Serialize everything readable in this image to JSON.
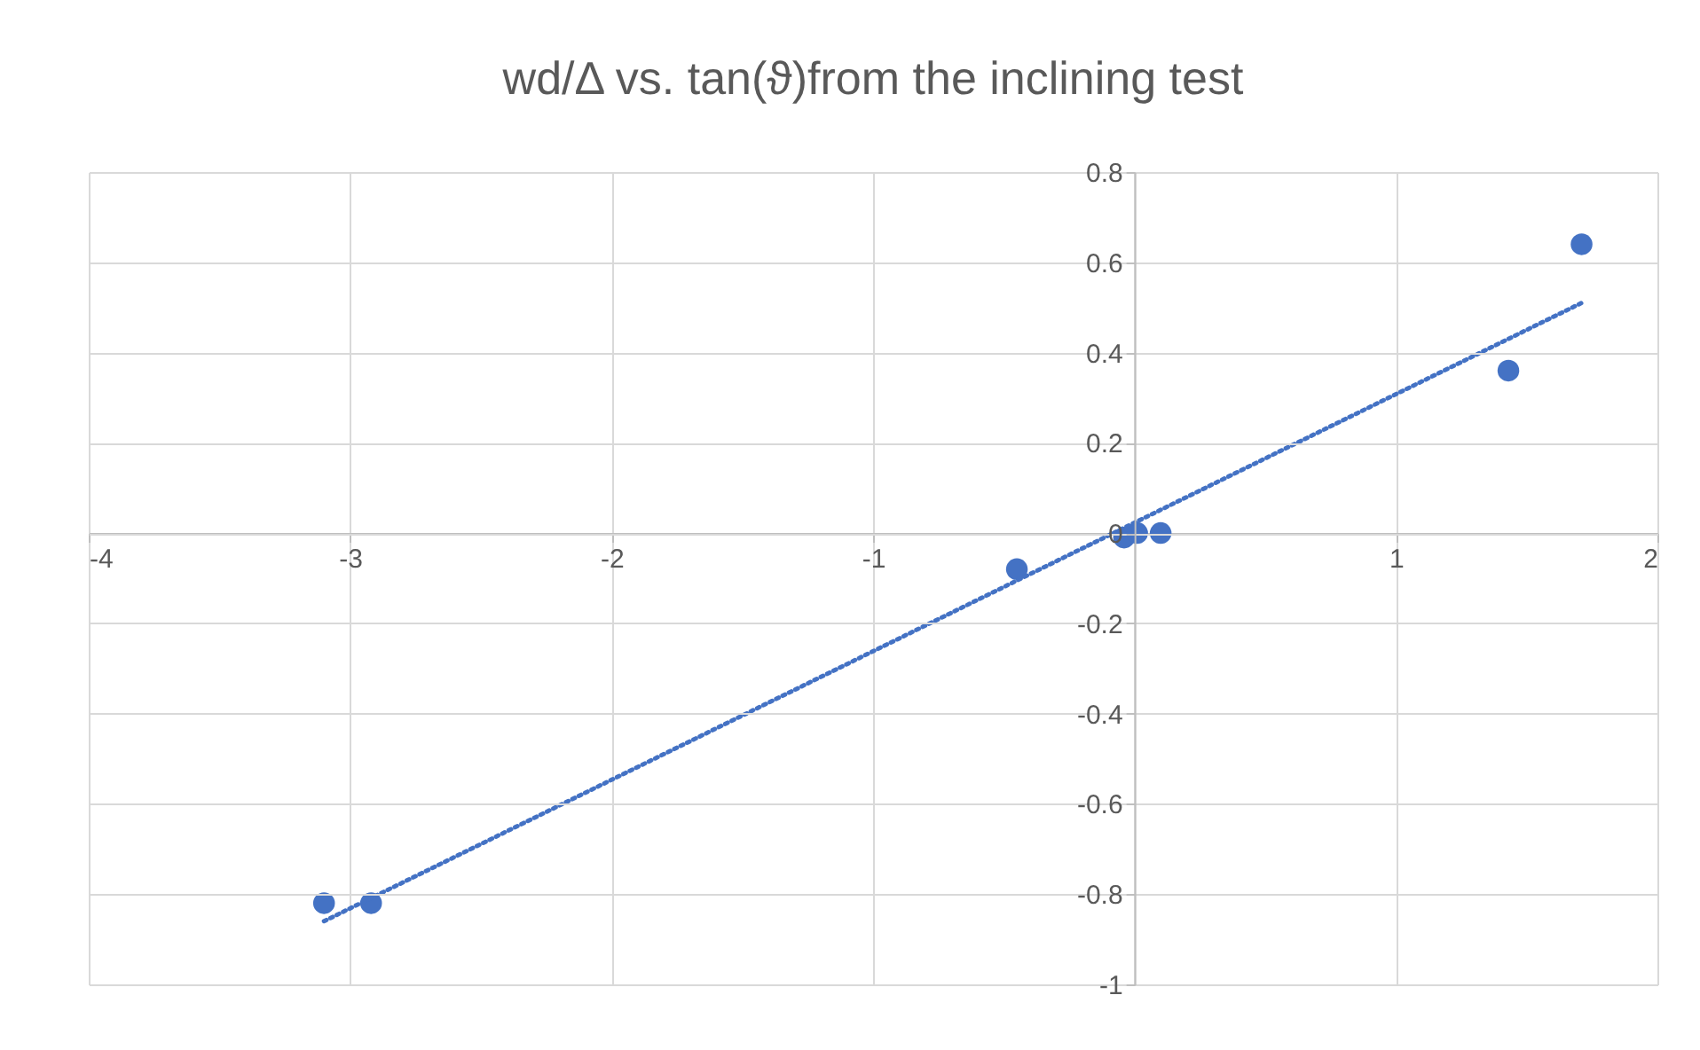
{
  "chart_data": {
    "type": "scatter",
    "title": "wd/Δ vs. tan(ϑ)from the inclining test",
    "x": [
      -3.1,
      -2.92,
      -0.45,
      -0.04,
      0.01,
      0.1,
      1.43,
      1.71
    ],
    "series": [
      {
        "color": "#4472c4",
        "marker": "circle",
        "values": [
          -0.82,
          -0.82,
          -0.08,
          -0.01,
          0,
          0,
          0.36,
          0.64
        ]
      },
      {
        "type": "line",
        "color": "#4472c4",
        "line_style": "dotted",
        "marker": "none",
        "x": [
          -3.1,
          1.71
        ],
        "values": [
          -0.86,
          0.51
        ]
      }
    ],
    "xlim": [
      -4,
      2
    ],
    "xticks": [
      -4,
      -3,
      -2,
      -1,
      {
        "value": 0,
        "label": null
      },
      1,
      2
    ],
    "ylim": [
      -1,
      0.8
    ],
    "yticks": [
      -1,
      -0.8,
      -0.6,
      -0.4,
      -0.2,
      0,
      0.2,
      0.4,
      0.6,
      0.8
    ],
    "grid": true
  }
}
